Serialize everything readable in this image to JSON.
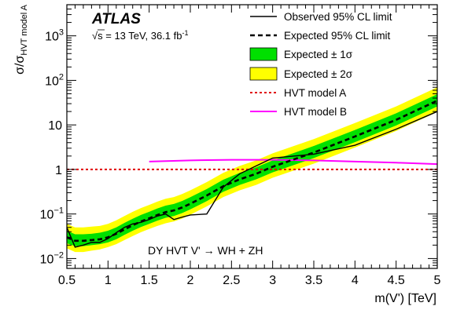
{
  "chart_data": {
    "type": "line",
    "experiment": "ATLAS",
    "subtitle": {
      "sqrt": "√",
      "s_label": "s",
      "rest": " = 13 TeV, 36.1 fb",
      "sup": "-1"
    },
    "annotation": "DY HVT V' → WH + ZH",
    "xlabel": "m(V')  [TeV]",
    "ylabel": {
      "main": "σ/σ",
      "sub": "HVT model A"
    },
    "xlim": [
      0.5,
      5.0
    ],
    "ylim": [
      0.006,
      5000
    ],
    "yscale": "log",
    "x_ticks": [
      {
        "v": 0.5,
        "label": "0.5"
      },
      {
        "v": 1,
        "label": "1"
      },
      {
        "v": 1.5,
        "label": "1.5"
      },
      {
        "v": 2,
        "label": "2"
      },
      {
        "v": 2.5,
        "label": "2.5"
      },
      {
        "v": 3,
        "label": "3"
      },
      {
        "v": 3.5,
        "label": "3.5"
      },
      {
        "v": 4,
        "label": "4"
      },
      {
        "v": 4.5,
        "label": "4.5"
      },
      {
        "v": 5,
        "label": "5"
      }
    ],
    "y_ticks": [
      {
        "v": 0.01,
        "base": "10",
        "exp": "−2"
      },
      {
        "v": 0.1,
        "base": "10",
        "exp": "−1"
      },
      {
        "v": 1,
        "base": "1",
        "exp": ""
      },
      {
        "v": 10,
        "base": "10",
        "exp": ""
      },
      {
        "v": 100,
        "base": "10",
        "exp": "2"
      },
      {
        "v": 1000,
        "base": "10",
        "exp": "3"
      }
    ],
    "legend": {
      "observed": "Observed 95% CL limit",
      "expected": "Expected 95% CL limit",
      "band1": "Expected ± 1σ",
      "band2": "Expected ± 2σ",
      "hvtA": "HVT model A",
      "hvtB": "HVT model B"
    },
    "colors": {
      "observed": "#000000",
      "expected": "#000000",
      "band1": "#00e000",
      "band2": "#ffff00",
      "hvtA": "#e00000",
      "hvtB": "#ff00ff"
    },
    "series": [
      {
        "key": "observed",
        "x": [
          0.5,
          0.6,
          0.7,
          0.8,
          0.9,
          1.0,
          1.1,
          1.2,
          1.3,
          1.4,
          1.5,
          1.6,
          1.7,
          1.8,
          1.9,
          2.0,
          2.2,
          2.4,
          2.6,
          2.8,
          3.0,
          3.5,
          4.0,
          4.5,
          5.0
        ],
        "y": [
          0.05,
          0.018,
          0.02,
          0.023,
          0.023,
          0.028,
          0.038,
          0.05,
          0.06,
          0.065,
          0.075,
          0.09,
          0.1,
          0.075,
          0.085,
          0.095,
          0.1,
          0.4,
          0.8,
          1.2,
          1.8,
          2.2,
          3.5,
          8.0,
          20.0
        ]
      },
      {
        "key": "expected",
        "x": [
          0.5,
          0.6,
          0.7,
          0.8,
          0.9,
          1.0,
          1.1,
          1.2,
          1.3,
          1.4,
          1.5,
          1.6,
          1.7,
          1.8,
          1.9,
          2.0,
          2.2,
          2.4,
          2.6,
          2.8,
          3.0,
          3.5,
          4.0,
          4.5,
          5.0
        ],
        "y": [
          0.03,
          0.025,
          0.025,
          0.026,
          0.027,
          0.03,
          0.036,
          0.045,
          0.056,
          0.068,
          0.08,
          0.095,
          0.11,
          0.12,
          0.14,
          0.17,
          0.26,
          0.42,
          0.6,
          0.8,
          1.15,
          2.4,
          5.5,
          13.0,
          35.0
        ]
      },
      {
        "key": "hvtA",
        "x": [
          0.5,
          5.0
        ],
        "y": [
          1.0,
          1.0
        ]
      },
      {
        "key": "hvtB",
        "x": [
          1.5,
          2.0,
          2.5,
          3.0,
          3.5,
          4.0,
          4.5,
          5.0
        ],
        "y": [
          1.5,
          1.6,
          1.65,
          1.65,
          1.6,
          1.5,
          1.42,
          1.32
        ]
      }
    ],
    "bands": {
      "x": [
        0.5,
        0.6,
        0.7,
        0.8,
        0.9,
        1.0,
        1.1,
        1.2,
        1.3,
        1.4,
        1.5,
        1.6,
        1.7,
        1.8,
        1.9,
        2.0,
        2.2,
        2.4,
        2.6,
        2.8,
        3.0,
        3.5,
        4.0,
        4.5,
        5.0
      ],
      "band2_lo": [
        0.017,
        0.014,
        0.014,
        0.015,
        0.016,
        0.018,
        0.021,
        0.026,
        0.032,
        0.039,
        0.046,
        0.054,
        0.062,
        0.068,
        0.079,
        0.096,
        0.148,
        0.24,
        0.34,
        0.45,
        0.65,
        1.35,
        3.1,
        7.3,
        19.5
      ],
      "band1_lo": [
        0.022,
        0.019,
        0.019,
        0.02,
        0.021,
        0.023,
        0.027,
        0.034,
        0.042,
        0.051,
        0.06,
        0.071,
        0.082,
        0.09,
        0.105,
        0.127,
        0.195,
        0.315,
        0.45,
        0.6,
        0.86,
        1.8,
        4.1,
        9.7,
        26.0
      ],
      "band1_hi": [
        0.042,
        0.035,
        0.035,
        0.036,
        0.038,
        0.042,
        0.05,
        0.063,
        0.078,
        0.095,
        0.112,
        0.133,
        0.154,
        0.168,
        0.196,
        0.238,
        0.364,
        0.588,
        0.84,
        1.12,
        1.6,
        3.36,
        7.7,
        18.2,
        49.0
      ],
      "band2_hi": [
        0.06,
        0.05,
        0.05,
        0.052,
        0.054,
        0.06,
        0.072,
        0.09,
        0.112,
        0.136,
        0.16,
        0.19,
        0.22,
        0.24,
        0.28,
        0.34,
        0.52,
        0.84,
        1.2,
        1.6,
        2.3,
        4.8,
        11.0,
        26.0,
        70.0
      ]
    }
  }
}
